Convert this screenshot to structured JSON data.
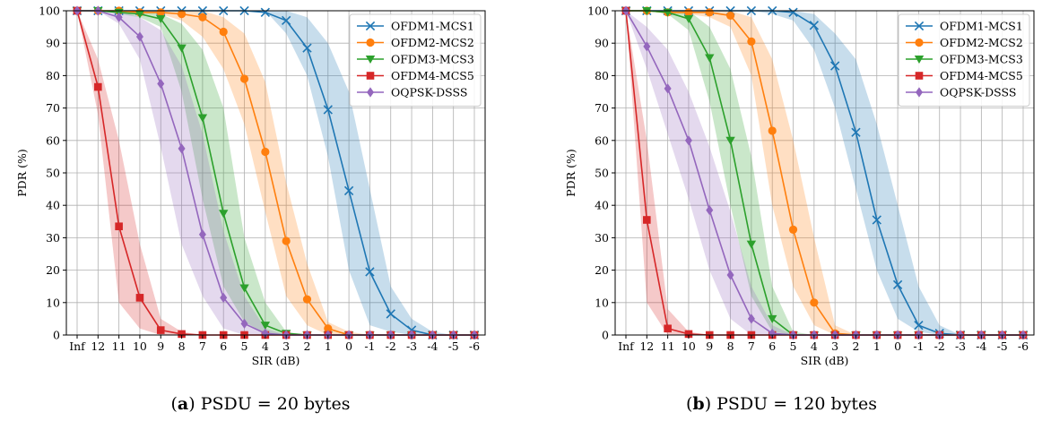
{
  "chart_data": [
    {
      "type": "line",
      "panel_letter": "a",
      "caption": "PSDU = 20 bytes",
      "xlabel": "SIR (dB)",
      "ylabel": "PDR (%)",
      "categories": [
        "Inf",
        "12",
        "11",
        "10",
        "9",
        "8",
        "7",
        "6",
        "5",
        "4",
        "3",
        "2",
        "1",
        "0",
        "-1",
        "-2",
        "-3",
        "-4",
        "-5",
        "-6"
      ],
      "yticks": [
        "0",
        "10",
        "20",
        "30",
        "40",
        "50",
        "60",
        "70",
        "80",
        "90",
        "100"
      ],
      "ylim": [
        0,
        100
      ],
      "grid": true,
      "legend": "top-right",
      "series": [
        {
          "name": "OFDM1-MCS1",
          "color": "#1f77b4",
          "marker": "x",
          "values": [
            100,
            100,
            100,
            100,
            100,
            100,
            100,
            100,
            100,
            99.5,
            97,
            88.5,
            69.5,
            44.5,
            19.5,
            6.5,
            1.5,
            0,
            0,
            0
          ],
          "band_low": [
            100,
            100,
            100,
            100,
            100,
            100,
            100,
            100,
            100,
            100,
            93,
            80,
            55,
            20,
            3,
            1,
            0,
            0,
            0,
            0
          ],
          "band_high": [
            100,
            100,
            100,
            100,
            100,
            100,
            100,
            100,
            100,
            100,
            100,
            98,
            90,
            75,
            45,
            15,
            5,
            1,
            0,
            0
          ]
        },
        {
          "name": "OFDM2-MCS2",
          "color": "#ff7f0e",
          "marker": "circle",
          "values": [
            100,
            100,
            100,
            99.5,
            99.5,
            99,
            98,
            93.5,
            79,
            56.5,
            29,
            11,
            2,
            0,
            0,
            0,
            0,
            0,
            0,
            0
          ],
          "band_low": [
            100,
            100,
            100,
            99,
            99,
            97,
            92,
            82,
            65,
            38,
            12,
            3,
            0,
            0,
            0,
            0,
            0,
            0,
            0,
            0
          ],
          "band_high": [
            100,
            100,
            100,
            100,
            100,
            100,
            100,
            98,
            93,
            78,
            47,
            22,
            4,
            1,
            0,
            0,
            0,
            0,
            0,
            0
          ]
        },
        {
          "name": "OFDM3-MCS3",
          "color": "#2ca02c",
          "marker": "triangle-down",
          "values": [
            100,
            100,
            99.5,
            99,
            97.5,
            88.5,
            67,
            37.5,
            14.5,
            3,
            0.5,
            0,
            0,
            0,
            0,
            0,
            0,
            0,
            0,
            0
          ],
          "band_low": [
            100,
            100,
            99,
            98,
            95,
            75,
            42,
            15,
            4,
            0.5,
            0,
            0,
            0,
            0,
            0,
            0,
            0,
            0,
            0,
            0
          ],
          "band_high": [
            100,
            100,
            100,
            100,
            99,
            96,
            88,
            70,
            30,
            10,
            1,
            0,
            0,
            0,
            0,
            0,
            0,
            0,
            0,
            0
          ]
        },
        {
          "name": "OFDM4-MCS5",
          "color": "#d62728",
          "marker": "square",
          "values": [
            100,
            76.5,
            33.5,
            11.5,
            1.5,
            0.3,
            0,
            0,
            0,
            0,
            0,
            0,
            0,
            0,
            0,
            0,
            0,
            0,
            0,
            0
          ],
          "band_low": [
            100,
            68,
            10,
            2,
            0,
            0,
            0,
            0,
            0,
            0,
            0,
            0,
            0,
            0,
            0,
            0,
            0,
            0,
            0,
            0
          ],
          "band_high": [
            100,
            85,
            60,
            28,
            5,
            1,
            0,
            0,
            0,
            0,
            0,
            0,
            0,
            0,
            0,
            0,
            0,
            0,
            0,
            0
          ]
        },
        {
          "name": "OQPSK-DSSS",
          "color": "#9467bd",
          "marker": "diamond",
          "values": [
            100,
            100,
            98,
            92,
            77.5,
            57.5,
            31,
            11.5,
            3.5,
            0.5,
            0,
            0,
            0,
            0,
            0,
            0,
            0,
            0,
            0,
            0
          ],
          "band_low": [
            100,
            100,
            96,
            85,
            58,
            28,
            12,
            2,
            0,
            0,
            0,
            0,
            0,
            0,
            0,
            0,
            0,
            0,
            0,
            0
          ],
          "band_high": [
            100,
            100,
            100,
            98,
            94,
            83,
            62,
            32,
            12,
            2,
            0,
            0,
            0,
            0,
            0,
            0,
            0,
            0,
            0,
            0
          ]
        }
      ]
    },
    {
      "type": "line",
      "panel_letter": "b",
      "caption": "PSDU = 120 bytes",
      "xlabel": "SIR (dB)",
      "ylabel": "PDR (%)",
      "categories": [
        "Inf",
        "12",
        "11",
        "10",
        "9",
        "8",
        "7",
        "6",
        "5",
        "4",
        "3",
        "2",
        "1",
        "0",
        "-1",
        "-2",
        "-3",
        "-4",
        "-5",
        "-6"
      ],
      "yticks": [
        "0",
        "10",
        "20",
        "30",
        "40",
        "50",
        "60",
        "70",
        "80",
        "90",
        "100"
      ],
      "ylim": [
        0,
        100
      ],
      "grid": true,
      "legend": "top-right",
      "series": [
        {
          "name": "OFDM1-MCS1",
          "color": "#1f77b4",
          "marker": "x",
          "values": [
            100,
            100,
            100,
            100,
            100,
            100,
            100,
            100,
            99.5,
            95.5,
            83,
            62.5,
            35.5,
            15.5,
            3,
            0.5,
            0,
            0,
            0,
            0
          ],
          "band_low": [
            100,
            100,
            100,
            100,
            100,
            100,
            100,
            99,
            97,
            88,
            70,
            45,
            20,
            5,
            1,
            0,
            0,
            0,
            0,
            0
          ],
          "band_high": [
            100,
            100,
            100,
            100,
            100,
            100,
            100,
            100,
            100,
            99,
            93,
            85,
            65,
            40,
            15,
            3,
            0,
            0,
            0,
            0
          ]
        },
        {
          "name": "OFDM2-MCS2",
          "color": "#ff7f0e",
          "marker": "circle",
          "values": [
            100,
            100,
            99.5,
            99.5,
            99.5,
            98.5,
            90.5,
            63,
            32.5,
            10,
            0.5,
            0,
            0,
            0,
            0,
            0,
            0,
            0,
            0,
            0
          ],
          "band_low": [
            100,
            100,
            99,
            99,
            98,
            95,
            80,
            40,
            15,
            3,
            0,
            0,
            0,
            0,
            0,
            0,
            0,
            0,
            0,
            0
          ],
          "band_high": [
            100,
            100,
            100,
            100,
            100,
            100,
            98,
            85,
            60,
            30,
            3,
            0,
            0,
            0,
            0,
            0,
            0,
            0,
            0,
            0
          ]
        },
        {
          "name": "OFDM3-MCS3",
          "color": "#2ca02c",
          "marker": "triangle-down",
          "values": [
            100,
            100,
            99.5,
            97.5,
            85.5,
            60,
            28,
            5,
            0,
            0,
            0,
            0,
            0,
            0,
            0,
            0,
            0,
            0,
            0,
            0
          ],
          "band_low": [
            100,
            100,
            99,
            94,
            72,
            40,
            12,
            1,
            0,
            0,
            0,
            0,
            0,
            0,
            0,
            0,
            0,
            0,
            0,
            0
          ],
          "band_high": [
            100,
            100,
            100,
            100,
            95,
            82,
            55,
            15,
            1,
            0,
            0,
            0,
            0,
            0,
            0,
            0,
            0,
            0,
            0,
            0
          ]
        },
        {
          "name": "OFDM4-MCS5",
          "color": "#d62728",
          "marker": "square",
          "values": [
            100,
            35.5,
            2,
            0.3,
            0,
            0,
            0,
            0,
            0,
            0,
            0,
            0,
            0,
            0,
            0,
            0,
            0,
            0,
            0,
            0
          ],
          "band_low": [
            100,
            10,
            0,
            0,
            0,
            0,
            0,
            0,
            0,
            0,
            0,
            0,
            0,
            0,
            0,
            0,
            0,
            0,
            0,
            0
          ],
          "band_high": [
            100,
            60,
            8,
            1,
            0,
            0,
            0,
            0,
            0,
            0,
            0,
            0,
            0,
            0,
            0,
            0,
            0,
            0,
            0,
            0
          ]
        },
        {
          "name": "OQPSK-DSSS",
          "color": "#9467bd",
          "marker": "diamond",
          "values": [
            100,
            89,
            76,
            60,
            38.5,
            18.5,
            5,
            0.5,
            0,
            0,
            0,
            0,
            0,
            0,
            0,
            0,
            0,
            0,
            0,
            0
          ],
          "band_low": [
            100,
            82,
            62,
            42,
            20,
            5,
            0,
            0,
            0,
            0,
            0,
            0,
            0,
            0,
            0,
            0,
            0,
            0,
            0,
            0
          ],
          "band_high": [
            100,
            95,
            88,
            75,
            58,
            38,
            15,
            3,
            0,
            0,
            0,
            0,
            0,
            0,
            0,
            0,
            0,
            0,
            0,
            0
          ]
        }
      ]
    }
  ]
}
